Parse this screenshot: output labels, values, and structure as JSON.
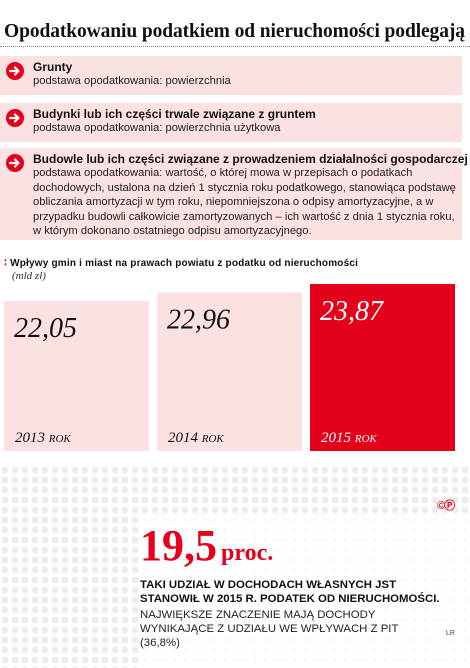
{
  "title": "Opodatkowaniu podatkiem od nieruchomości podlegają",
  "items": [
    {
      "heading": "Grunty",
      "text": "podstawa opodatkowania: powierzchnia"
    },
    {
      "heading": "Budynki lub ich części trwale związane z gruntem",
      "text": "podstawa opodatkowania: powierzchnia użytkowa"
    },
    {
      "heading": "Budowle lub ich części związane z prowadzeniem działalności gospodarczej",
      "text": "podstawa opodatkowania: wartość, o której mowa w przepisach o podatkach dochodowych, ustalona na dzień 1 stycznia roku podatkowego, stanowiąca podstawę obliczania amortyzacji w tym roku, niepomniejszona o odpisy amortyzacyjne, a w przypadku budowli całkowicie zamortyzowanych – ich wartość z dnia 1 stycznia roku, w którym dokonano ostatniego odpisu amortyzacyjnego."
    }
  ],
  "chart_data": {
    "type": "bar",
    "title": "Wpływy gmin i miast na prawach powiatu z podatku od nieruchomości",
    "unit": "(mld zł)",
    "categories": [
      "2013 ROK",
      "2014 ROK",
      "2015 ROK"
    ],
    "values": [
      22.05,
      22.96,
      23.87
    ],
    "value_labels": [
      "22,05",
      "22,96",
      "23,87"
    ],
    "highlight_index": 2,
    "colors": {
      "normal": "#fbe1e1",
      "highlight": "#e4001b"
    }
  },
  "source_badge": "©Ⓟ",
  "stat": {
    "value": "19,5",
    "unit": "proc."
  },
  "note_main": "TAKI UDZIAŁ W DOCHODACH WŁASNYCH JST STANOWIŁ W 2015 R. PODATEK OD NIERUCHOMOŚCI.",
  "note_sub": "NAJWIĘKSZE ZNACZENIE MAJĄ DOCHODY WYNIKAJĄCE Z UDZIAŁU WE WPŁYWACH Z PIT (36,8%)",
  "author": "LR",
  "colors": {
    "accent": "#e4001b",
    "box_bg": "#fbe1e1"
  }
}
